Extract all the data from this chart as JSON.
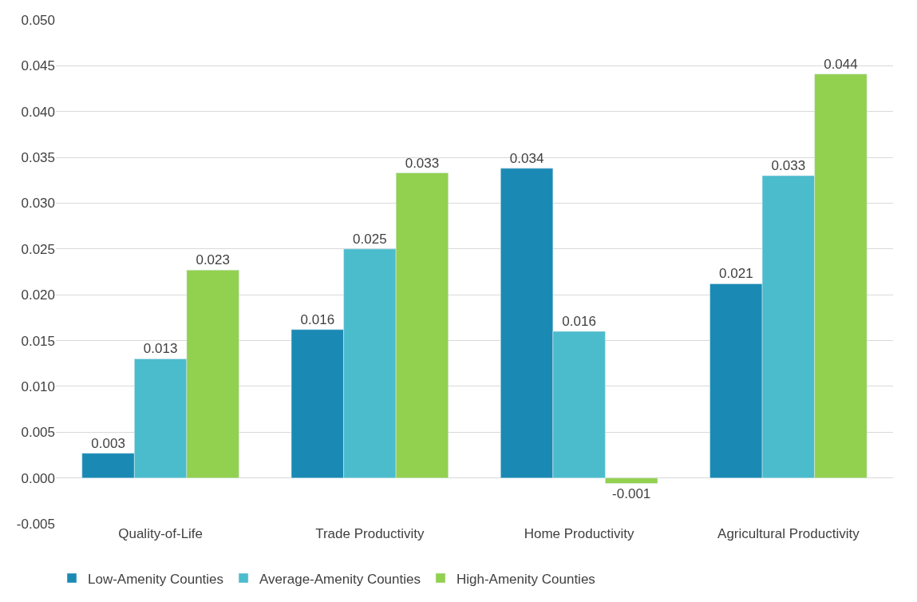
{
  "chart_data": {
    "type": "bar",
    "categories": [
      "Quality-of-Life",
      "Trade Productivity",
      "Home Productivity",
      "Agricultural Productivity"
    ],
    "series": [
      {
        "name": "Low-Amenity Counties",
        "color": "#1a8ab4",
        "values": [
          0.0027,
          0.0162,
          0.0338,
          0.0212
        ],
        "value_labels": [
          "0.003",
          "0.016",
          "0.034",
          "0.021"
        ]
      },
      {
        "name": "Average-Amenity Counties",
        "color": "#4bbccc",
        "values": [
          0.013,
          0.025,
          0.016,
          0.033
        ],
        "value_labels": [
          "0.013",
          "0.025",
          "0.016",
          "0.033"
        ]
      },
      {
        "name": "High-Amenity Counties",
        "color": "#92d050",
        "values": [
          0.0227,
          0.0333,
          -0.0006,
          0.0441
        ],
        "value_labels": [
          "0.023",
          "0.033",
          "-0.001",
          "0.044"
        ]
      }
    ],
    "ylim": [
      -0.005,
      0.05
    ],
    "yticks": [
      {
        "value": -0.005,
        "label": "-0.005"
      },
      {
        "value": 0,
        "label": "0.000"
      },
      {
        "value": 0.005,
        "label": "0.005"
      },
      {
        "value": 0.01,
        "label": "0.010"
      },
      {
        "value": 0.015,
        "label": "0.015"
      },
      {
        "value": 0.02,
        "label": "0.020"
      },
      {
        "value": 0.025,
        "label": "0.025"
      },
      {
        "value": 0.03,
        "label": "0.030"
      },
      {
        "value": 0.035,
        "label": "0.035"
      },
      {
        "value": 0.04,
        "label": "0.040"
      },
      {
        "value": 0.045,
        "label": "0.045"
      },
      {
        "value": 0.05,
        "label": "0.050"
      }
    ],
    "grid": "y",
    "legend": "bottom"
  }
}
